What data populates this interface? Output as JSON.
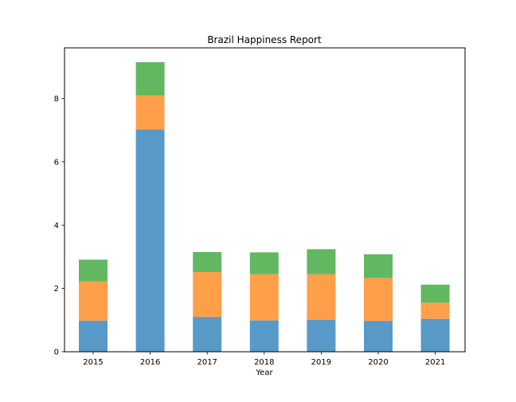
{
  "chart_data": {
    "type": "bar",
    "stacked": true,
    "title": "Brazil Happiness Report",
    "xlabel": "Year",
    "ylabel": "",
    "categories": [
      "2015",
      "2016",
      "2017",
      "2018",
      "2019",
      "2020",
      "2021"
    ],
    "ylim": [
      0,
      9.6
    ],
    "yticks": [
      0,
      2,
      4,
      6,
      8
    ],
    "grid": false,
    "legend": false,
    "series": [
      {
        "values": [
          0.98,
          7.02,
          1.1,
          0.99,
          1.01,
          0.97,
          1.04
        ],
        "color": "#1f77b4"
      },
      {
        "values": [
          1.25,
          1.08,
          1.42,
          1.46,
          1.44,
          1.36,
          0.51
        ],
        "color": "#ff7f0e"
      },
      {
        "values": [
          0.68,
          1.05,
          0.63,
          0.69,
          0.79,
          0.75,
          0.57
        ],
        "color": "#2ca02c"
      }
    ],
    "bar_opacity": 0.75
  }
}
